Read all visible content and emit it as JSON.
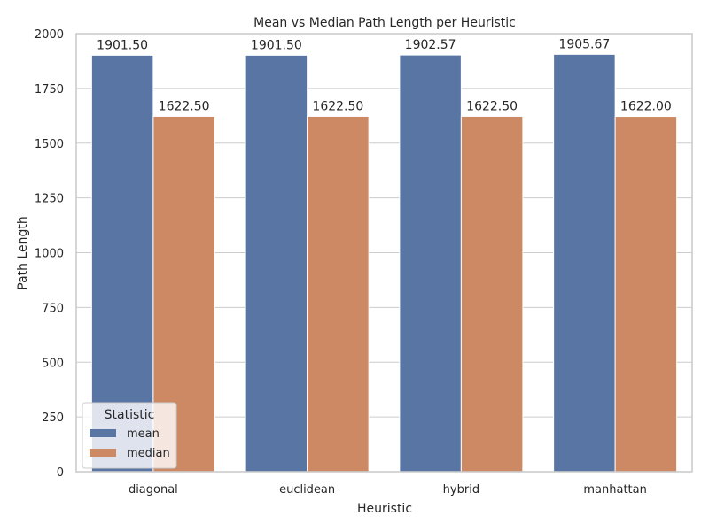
{
  "chart_data": {
    "type": "bar",
    "title": "Mean vs Median Path Length per Heuristic",
    "xlabel": "Heuristic",
    "ylabel": "Path Length",
    "categories": [
      "diagonal",
      "euclidean",
      "hybrid",
      "manhattan"
    ],
    "series": [
      {
        "name": "mean",
        "color": "#5975a4",
        "values": [
          1901.5,
          1901.5,
          1902.57,
          1905.67
        ],
        "labels": [
          "1901.50",
          "1901.50",
          "1902.57",
          "1905.67"
        ]
      },
      {
        "name": "median",
        "color": "#cc8963",
        "values": [
          1622.5,
          1622.5,
          1622.5,
          1622.0
        ],
        "labels": [
          "1622.50",
          "1622.50",
          "1622.50",
          "1622.00"
        ]
      }
    ],
    "ylim": [
      0,
      2000
    ],
    "yticks": [
      0,
      250,
      500,
      750,
      1000,
      1250,
      1500,
      1750,
      2000
    ],
    "ytick_labels": [
      "0",
      "250",
      "500",
      "750",
      "1000",
      "1250",
      "1500",
      "1750",
      "2000"
    ],
    "grid": true,
    "legend": {
      "title": "Statistic",
      "position": "bottom-left"
    }
  }
}
